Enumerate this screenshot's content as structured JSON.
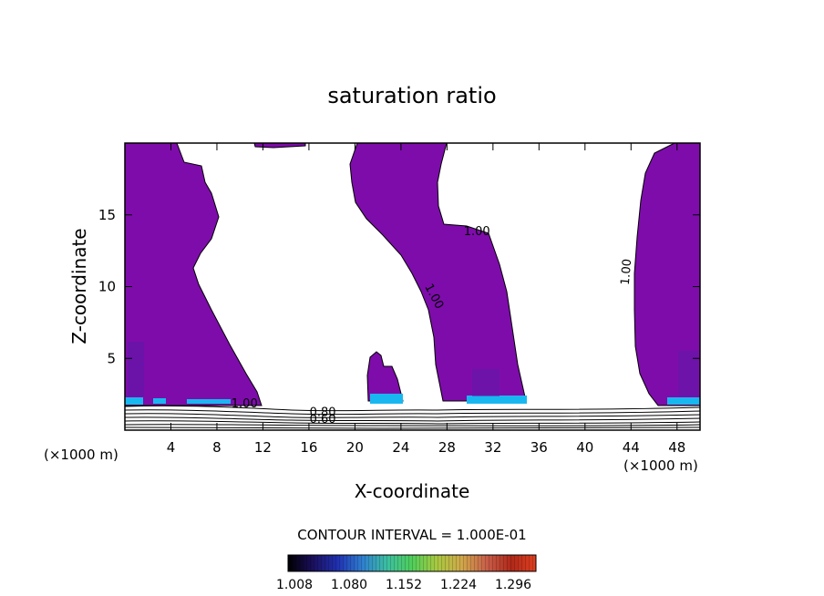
{
  "chart_data": {
    "type": "heatmap",
    "title": "saturation ratio",
    "xlabel": "X-coordinate",
    "ylabel": "Z-coordinate",
    "x_unit_left": "(×1000 m)",
    "x_unit_right": "(×1000 m)",
    "xlim": [
      0,
      50
    ],
    "ylim": [
      0,
      20
    ],
    "x_ticks": [
      4,
      8,
      12,
      16,
      20,
      24,
      28,
      32,
      36,
      40,
      44,
      48
    ],
    "y_ticks": [
      5,
      10,
      15
    ],
    "contour_interval_label": "CONTOUR INTERVAL = 1.000E-01",
    "contour_labels": [
      {
        "text": "1.00",
        "x": 10.4,
        "z": 1.6,
        "rotate": 0
      },
      {
        "text": "1.00",
        "x": 30.6,
        "z": 13.6,
        "rotate": 0
      },
      {
        "text": "1.00",
        "x": 26.6,
        "z": 9.2,
        "rotate": 62
      },
      {
        "text": "1.00",
        "x": 43.9,
        "z": 11.0,
        "rotate": -85
      },
      {
        "text": "0.80",
        "x": 17.2,
        "z": 1.0,
        "rotate": 0
      },
      {
        "text": "0.60",
        "x": 17.2,
        "z": 0.5,
        "rotate": 0
      }
    ],
    "colorbar": {
      "tick_labels": [
        "1.008",
        "1.080",
        "1.152",
        "1.224",
        "1.296"
      ],
      "colors": [
        "#000000",
        "#1a0f5c",
        "#2030b0",
        "#2f7fd0",
        "#3cbfa0",
        "#4fce5a",
        "#a8c840",
        "#d0a84a",
        "#c8604a",
        "#b02818",
        "#e04020"
      ]
    },
    "colors": {
      "supersaturated": "#7e0cab",
      "contour": "#000000",
      "cyan_band": "#19b7f0"
    }
  }
}
